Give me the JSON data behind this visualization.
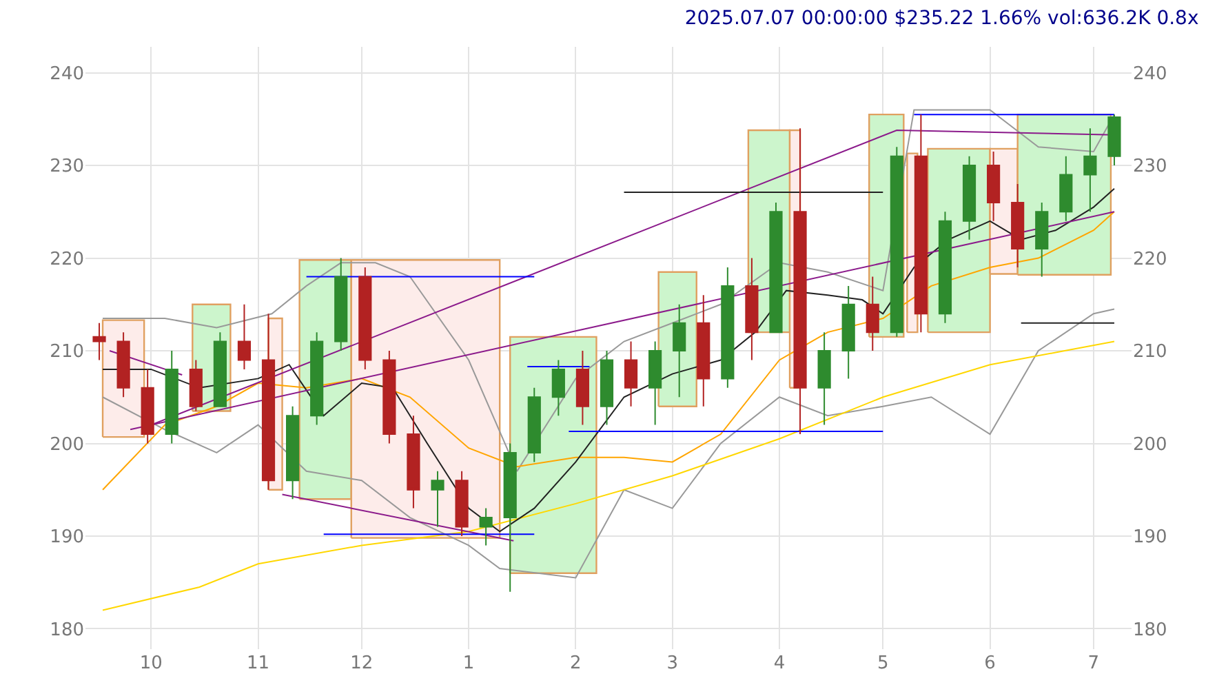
{
  "chart_data": {
    "type": "candlestick",
    "title": "2025.07.07 00:00:00 $235.22 1.66% vol:636.2K 0.8x",
    "x": [
      "2024-09-16",
      "2024-09-23",
      "2024-09-30",
      "2024-10-07",
      "2024-10-14",
      "2024-10-21",
      "2024-10-28",
      "2024-11-04",
      "2024-11-11",
      "2024-11-18",
      "2024-11-25",
      "2024-12-02",
      "2024-12-09",
      "2024-12-16",
      "2024-12-23",
      "2024-12-30",
      "2025-01-06",
      "2025-01-13",
      "2025-01-20",
      "2025-01-27",
      "2025-02-03",
      "2025-02-10",
      "2025-02-17",
      "2025-02-24",
      "2025-03-03",
      "2025-03-10",
      "2025-03-17",
      "2025-03-24",
      "2025-03-31",
      "2025-04-07",
      "2025-04-14",
      "2025-04-21",
      "2025-04-28",
      "2025-05-05",
      "2025-05-12",
      "2025-05-19",
      "2025-05-26",
      "2025-06-02",
      "2025-06-09",
      "2025-06-16",
      "2025-06-23",
      "2025-06-30",
      "2025-07-07"
    ],
    "ohlc": [
      [
        211.5,
        213,
        209,
        211
      ],
      [
        211,
        212,
        205,
        206
      ],
      [
        206,
        208,
        200,
        201
      ],
      [
        201,
        210,
        200,
        208
      ],
      [
        208,
        209,
        203.5,
        204
      ],
      [
        204,
        212,
        204,
        211
      ],
      [
        211,
        215,
        208,
        209
      ],
      [
        209,
        214,
        195,
        196
      ],
      [
        196,
        204,
        194,
        203
      ],
      [
        203,
        212,
        202,
        211
      ],
      [
        211,
        220,
        210,
        218
      ],
      [
        218,
        219,
        208,
        209
      ],
      [
        209,
        210,
        200,
        201
      ],
      [
        201,
        203,
        193,
        195
      ],
      [
        195,
        197,
        191,
        196
      ],
      [
        196,
        197,
        190,
        191
      ],
      [
        191,
        193,
        189,
        192
      ],
      [
        192,
        200,
        184,
        199
      ],
      [
        199,
        206,
        198,
        205
      ],
      [
        205,
        209,
        203,
        208
      ],
      [
        208,
        210,
        202,
        204
      ],
      [
        204,
        210,
        202,
        209
      ],
      [
        209,
        211,
        204,
        206
      ],
      [
        206,
        211,
        202,
        210
      ],
      [
        210,
        215,
        205,
        213
      ],
      [
        213,
        216,
        204,
        207
      ],
      [
        207,
        219,
        206,
        217
      ],
      [
        217,
        220,
        209,
        212
      ],
      [
        212,
        226,
        212,
        225
      ],
      [
        225,
        234,
        201,
        206
      ],
      [
        206,
        212,
        202,
        210
      ],
      [
        210,
        217,
        207,
        215
      ],
      [
        215,
        218,
        210,
        212
      ],
      [
        212,
        232,
        211.5,
        231
      ],
      [
        231,
        235.5,
        212,
        214
      ],
      [
        214,
        225,
        213,
        224
      ],
      [
        224,
        231,
        222,
        230
      ],
      [
        230,
        231.5,
        224,
        226
      ],
      [
        226,
        228,
        219,
        221
      ],
      [
        221,
        226,
        218,
        225
      ],
      [
        225,
        231,
        224,
        229
      ],
      [
        229,
        234,
        225,
        231
      ],
      [
        231,
        235.5,
        230,
        235.22
      ]
    ],
    "series": [
      {
        "type": "area",
        "color": "#fdecea",
        "x": [
          "2024-09-17",
          "2024-09-17",
          "2024-09-29",
          "2024-09-29",
          "2024-09-17"
        ],
        "values": [
          200.7,
          213.3,
          213.3,
          200.7,
          200.7
        ]
      },
      {
        "type": "area",
        "color": "#ccf5cc",
        "x": [
          "2024-10-13",
          "2024-10-13",
          "2024-10-24",
          "2024-10-24",
          "2024-10-13"
        ],
        "values": [
          203.5,
          215,
          215,
          203.5,
          203.5
        ]
      },
      {
        "type": "area",
        "color": "#fdecea",
        "x": [
          "2024-11-04",
          "2024-11-04",
          "2024-11-08",
          "2024-11-08",
          "2024-11-04"
        ],
        "values": [
          195,
          213.5,
          213.5,
          195,
          195
        ]
      },
      {
        "type": "area",
        "color": "#ccf5cc",
        "x": [
          "2024-11-13",
          "2024-11-13",
          "2024-11-28",
          "2024-11-28",
          "2024-11-13"
        ],
        "values": [
          194,
          219.8,
          219.8,
          194,
          194
        ]
      },
      {
        "type": "area",
        "color": "#fdecea",
        "x": [
          "2024-11-28",
          "2024-11-28",
          "2025-01-10",
          "2025-01-10",
          "2024-11-28"
        ],
        "values": [
          189.8,
          219.8,
          219.8,
          189.8,
          189.8
        ]
      },
      {
        "type": "area",
        "color": "#ccf5cc",
        "x": [
          "2025-01-13",
          "2025-01-13",
          "2025-02-07",
          "2025-02-07",
          "2025-01-13"
        ],
        "values": [
          186,
          211.5,
          211.5,
          186,
          186
        ]
      },
      {
        "type": "area",
        "color": "#ccf5cc",
        "x": [
          "2025-02-25",
          "2025-02-25",
          "2025-03-08",
          "2025-03-08",
          "2025-02-25"
        ],
        "values": [
          204,
          218.5,
          218.5,
          204,
          204
        ]
      },
      {
        "type": "area",
        "color": "#ccf5cc",
        "x": [
          "2025-03-23",
          "2025-03-23",
          "2025-04-04",
          "2025-04-04",
          "2025-03-23"
        ],
        "values": [
          212,
          233.8,
          233.8,
          212,
          212
        ]
      },
      {
        "type": "area",
        "color": "#fdecea",
        "x": [
          "2025-04-04",
          "2025-04-04",
          "2025-04-07",
          "2025-04-07",
          "2025-04-04"
        ],
        "values": [
          206,
          233.8,
          233.8,
          206,
          206
        ]
      },
      {
        "type": "area",
        "color": "#ccf5cc",
        "x": [
          "2025-04-27",
          "2025-04-27",
          "2025-05-07",
          "2025-05-07",
          "2025-04-27"
        ],
        "values": [
          211.5,
          235.5,
          235.5,
          211.5,
          211.5
        ]
      },
      {
        "type": "area",
        "color": "#fdecea",
        "x": [
          "2025-05-08",
          "2025-05-08",
          "2025-05-11",
          "2025-05-11",
          "2025-05-08"
        ],
        "values": [
          212,
          231.3,
          231.3,
          212,
          212
        ]
      },
      {
        "type": "area",
        "color": "#ccf5cc",
        "x": [
          "2025-05-14",
          "2025-05-14",
          "2025-06-01",
          "2025-06-01",
          "2025-05-14"
        ],
        "values": [
          212,
          231.8,
          231.8,
          212,
          212
        ]
      },
      {
        "type": "area",
        "color": "#fdecea",
        "x": [
          "2025-06-01",
          "2025-06-01",
          "2025-06-09",
          "2025-06-09",
          "2025-06-01"
        ],
        "values": [
          218.3,
          231.8,
          231.8,
          218.3,
          218.3
        ]
      },
      {
        "type": "area",
        "color": "#ccf5cc",
        "x": [
          "2025-06-09",
          "2025-06-09",
          "2025-07-06",
          "2025-07-06",
          "2025-06-09"
        ],
        "values": [
          218.2,
          235.5,
          235.5,
          218.2,
          218.2
        ]
      },
      {
        "type": "line",
        "color": "#999999",
        "x": [
          "2024-09-17",
          "2024-10-05",
          "2024-10-20",
          "2024-11-05",
          "2024-11-15",
          "2024-11-25",
          "2024-12-05",
          "2024-12-15",
          "2025-01-01",
          "2025-01-15",
          "2025-02-01",
          "2025-02-15",
          "2025-03-01",
          "2025-03-15",
          "2025-04-01",
          "2025-04-15",
          "2025-05-01",
          "2025-05-10",
          "2025-06-01",
          "2025-06-15",
          "2025-07-01",
          "2025-07-07"
        ],
        "values": [
          213.5,
          213.5,
          212.5,
          214,
          217,
          219.5,
          219.5,
          218,
          209,
          197,
          207,
          211,
          213,
          215,
          219.5,
          218.5,
          216.5,
          236,
          236,
          232,
          231.5,
          235.5
        ]
      },
      {
        "type": "line",
        "color": "#999999",
        "x": [
          "2024-09-17",
          "2024-10-05",
          "2024-10-20",
          "2024-11-01",
          "2024-11-15",
          "2024-12-01",
          "2024-12-15",
          "2025-01-01",
          "2025-01-10",
          "2025-02-01",
          "2025-02-15",
          "2025-03-01",
          "2025-03-15",
          "2025-04-01",
          "2025-04-15",
          "2025-05-01",
          "2025-05-15",
          "2025-06-01",
          "2025-06-15",
          "2025-07-01",
          "2025-07-07"
        ],
        "values": [
          205,
          201.5,
          199,
          202,
          197,
          196,
          192,
          189,
          186.5,
          185.5,
          195,
          193,
          200,
          205,
          203,
          204,
          205,
          201,
          210,
          214,
          214.5
        ]
      },
      {
        "type": "line",
        "color": "#ffd700",
        "x": [
          "2024-09-17",
          "2024-10-15",
          "2024-11-01",
          "2024-12-01",
          "2025-01-01",
          "2025-02-01",
          "2025-03-01",
          "2025-04-01",
          "2025-05-01",
          "2025-06-01",
          "2025-07-07"
        ],
        "values": [
          182,
          184.5,
          187,
          189,
          190.5,
          193.5,
          196.5,
          200.5,
          205,
          208.5,
          211
        ]
      },
      {
        "type": "line",
        "color": "#ffa500",
        "x": [
          "2024-09-17",
          "2024-10-05",
          "2024-10-20",
          "2024-11-01",
          "2024-11-15",
          "2024-12-01",
          "2024-12-15",
          "2025-01-01",
          "2025-01-15",
          "2025-02-01",
          "2025-02-15",
          "2025-03-01",
          "2025-03-15",
          "2025-04-01",
          "2025-04-15",
          "2025-05-01",
          "2025-05-15",
          "2025-06-01",
          "2025-06-15",
          "2025-07-01",
          "2025-07-07"
        ],
        "values": [
          195,
          202,
          204,
          206.5,
          206,
          207,
          205,
          199.5,
          197.5,
          198.5,
          198.5,
          198,
          201,
          209,
          212,
          213.5,
          217,
          219,
          220,
          223,
          225
        ]
      },
      {
        "type": "line",
        "color": "#222222",
        "x": [
          "2024-09-17",
          "2024-10-01",
          "2024-10-15",
          "2024-11-01",
          "2024-11-10",
          "2024-11-20",
          "2024-12-01",
          "2024-12-10",
          "2024-12-20",
          "2025-01-01",
          "2025-01-10",
          "2025-01-20",
          "2025-02-01",
          "2025-02-15",
          "2025-03-01",
          "2025-03-15",
          "2025-03-25",
          "2025-04-03",
          "2025-04-15",
          "2025-04-25",
          "2025-05-01",
          "2025-05-10",
          "2025-05-20",
          "2025-06-01",
          "2025-06-10",
          "2025-06-20",
          "2025-07-01",
          "2025-07-07"
        ],
        "values": [
          208,
          208,
          206,
          207,
          208.5,
          203,
          206.5,
          206,
          200,
          193,
          190.5,
          193,
          198,
          205,
          207.5,
          209,
          212,
          216.5,
          216,
          215.5,
          214,
          219,
          222,
          224,
          222,
          223,
          225.5,
          227.5
        ]
      },
      {
        "type": "line",
        "color": "#8b1a8b",
        "x": [
          "2024-10-01",
          "2025-05-05",
          "2025-07-07"
        ],
        "values": [
          202,
          233.8,
          233.3
        ]
      },
      {
        "type": "line",
        "color": "#8b1a8b",
        "x": [
          "2024-09-25",
          "2025-07-07"
        ],
        "values": [
          201.5,
          225
        ]
      },
      {
        "type": "line",
        "color": "#8b1a8b",
        "x": [
          "2024-09-19",
          "2024-10-10"
        ],
        "values": [
          210,
          207.4
        ]
      },
      {
        "type": "line",
        "color": "#8b1a8b",
        "x": [
          "2024-11-08",
          "2025-01-14"
        ],
        "values": [
          194.5,
          189.5
        ]
      },
      {
        "type": "line",
        "color": "#0000ff",
        "x": [
          "2024-11-15",
          "2025-01-20"
        ],
        "values": [
          218,
          218
        ]
      },
      {
        "type": "line",
        "color": "#0000ff",
        "x": [
          "2024-11-20",
          "2025-01-20"
        ],
        "values": [
          190.2,
          190.2
        ]
      },
      {
        "type": "line",
        "color": "#0000ff",
        "x": [
          "2025-01-18",
          "2025-02-05"
        ],
        "values": [
          208.3,
          208.3
        ]
      },
      {
        "type": "line",
        "color": "#0000ff",
        "x": [
          "2025-01-30",
          "2025-05-01"
        ],
        "values": [
          201.3,
          201.3
        ]
      },
      {
        "type": "line",
        "color": "#0000ff",
        "x": [
          "2025-05-10",
          "2025-07-07"
        ],
        "values": [
          235.5,
          235.5
        ]
      },
      {
        "type": "line",
        "color": "#222222",
        "x": [
          "2025-02-15",
          "2025-05-01"
        ],
        "values": [
          227.1,
          227.1
        ]
      },
      {
        "type": "line",
        "color": "#222222",
        "x": [
          "2025-06-10",
          "2025-07-07"
        ],
        "values": [
          213,
          213
        ]
      }
    ],
    "xlim": [
      "2024-09-12",
      "2025-07-12"
    ],
    "xticks": [
      {
        "value": "2024-10-01",
        "label": "10"
      },
      {
        "value": "2024-11-01",
        "label": "11"
      },
      {
        "value": "2024-12-01",
        "label": "12"
      },
      {
        "value": "2025-01-01",
        "label": "1"
      },
      {
        "value": "2025-02-01",
        "label": "2"
      },
      {
        "value": "2025-03-01",
        "label": "3"
      },
      {
        "value": "2025-04-01",
        "label": "4"
      },
      {
        "value": "2025-05-01",
        "label": "5"
      },
      {
        "value": "2025-06-01",
        "label": "6"
      },
      {
        "value": "2025-07-01",
        "label": "7"
      }
    ],
    "ylim": [
      177.8,
      242.8
    ],
    "yticks": [
      180,
      190,
      200,
      210,
      220,
      230,
      240
    ],
    "y2lim": [
      177.8,
      242.8
    ],
    "y2ticks": [
      180,
      190,
      200,
      210,
      220,
      230,
      240
    ],
    "grid": true
  }
}
